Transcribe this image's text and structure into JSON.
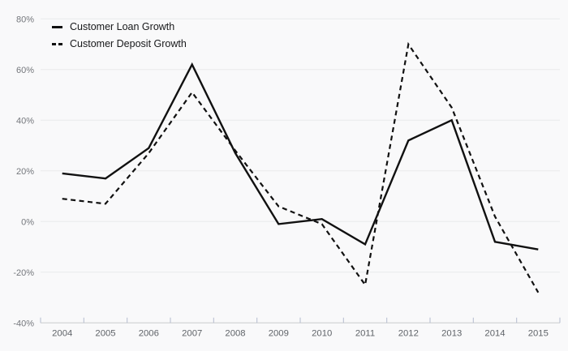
{
  "chart_data": {
    "type": "line",
    "categories": [
      "2004",
      "2005",
      "2006",
      "2007",
      "2008",
      "2009",
      "2010",
      "2011",
      "2012",
      "2013",
      "2014",
      "2015"
    ],
    "series": [
      {
        "name": "Customer Loan Growth",
        "style": "solid",
        "values": [
          19,
          17,
          29,
          62,
          27,
          -1,
          1,
          -9,
          32,
          40,
          -8,
          -11
        ]
      },
      {
        "name": "Customer Deposit Growth",
        "style": "dashed",
        "values": [
          9,
          7,
          27,
          51,
          28,
          6,
          -1,
          -25,
          70,
          45,
          2,
          -28
        ]
      }
    ],
    "title": "",
    "xlabel": "",
    "ylabel": "",
    "ylim": [
      -40,
      80
    ],
    "yticks": [
      -40,
      -20,
      0,
      20,
      40,
      60,
      80
    ],
    "ytick_suffix": "%",
    "grid": "horizontal",
    "legend_position": "top-left"
  },
  "colors": {
    "background": "#f9f9fa",
    "line": "#111111",
    "grid": "#e9eaeb",
    "axis": "#c9cbcd",
    "tick": "#b4bcce",
    "y_label": "#74777c",
    "x_label": "#5f6368",
    "legend_text": "#17181a"
  }
}
